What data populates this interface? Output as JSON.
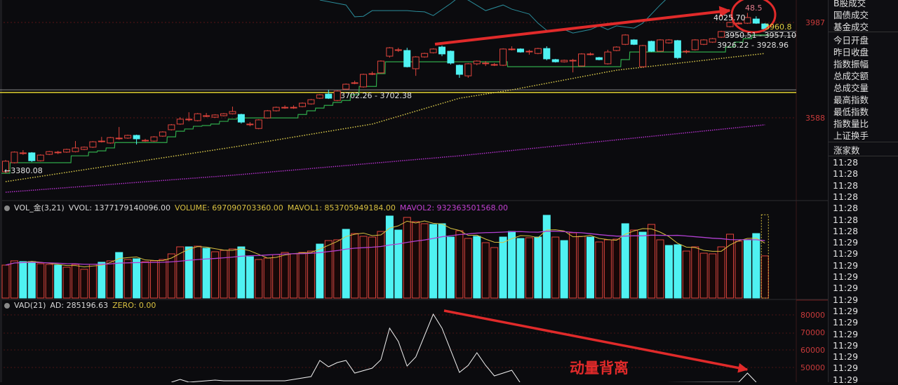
{
  "colors": {
    "up": "#e0443c",
    "down": "#4ff2f2",
    "ma_green": "#2fa84a",
    "ma_yellow": "#d8c84a",
    "ma_purple": "#b030c8",
    "upper_line": "#2a8c9a",
    "annotation": "#e02a2a",
    "axis": "#c83a3a"
  },
  "price_axis": {
    "labels": [
      "3987",
      "3588"
    ]
  },
  "vad_axis": {
    "labels": [
      "80000",
      "70000",
      "60000",
      "50000"
    ]
  },
  "price_labels": {
    "low": "3380.08",
    "mid": "3702.26 - 3702.38",
    "high": "4025.70",
    "circle_value": "48.5",
    "right1": "3950.51 - 3957.10",
    "right2": "3926.22 - 3928.96",
    "right3": "3960.8"
  },
  "vol_header": {
    "name": "VOL_金(3,21)",
    "vvol": "VVOL: 1377179140096.00",
    "volume": "VOLUME: 697090703360.00",
    "mavol1": "MAVOL1: 853705949184.00",
    "mavol2": "MAVOL2: 932363501568.00"
  },
  "vad_header": {
    "name": "VAD(21)",
    "ad": "AD: 285196.63",
    "zero": "ZERO: 0.00"
  },
  "annotation_text": "动量背离",
  "sidebar": {
    "top_items": [
      "B股成交",
      "国债成交",
      "基金成交"
    ],
    "items": [
      "今日开盘",
      "昨日收盘",
      "指数振幅",
      "总成交额",
      "总成交量",
      "最高指数",
      "最低指数",
      "指数量比",
      "上证换手"
    ],
    "last_item": "涨家数",
    "times": [
      "11:28",
      "11:28",
      "11:28",
      "11:28",
      "11:28",
      "11:28",
      "11:28",
      "11:29",
      "11:29",
      "11:29",
      "11:29",
      "11:29",
      "11:29",
      "11:29",
      "11:29",
      "11:29",
      "11:29",
      "11:29",
      "11:29",
      "11:29"
    ]
  },
  "chart_data": {
    "type": "candlestick",
    "price_range": [
      3290,
      4090
    ],
    "reference_lines": [
      3702.3,
      3713
    ],
    "candles": [
      [
        3380,
        3428,
        3374,
        3423
      ],
      [
        3417,
        3463,
        3414,
        3460
      ],
      [
        3457,
        3468,
        3449,
        3457
      ],
      [
        3457,
        3460,
        3420,
        3425
      ],
      [
        3425,
        3451,
        3422,
        3448
      ],
      [
        3451,
        3465,
        3448,
        3462
      ],
      [
        3460,
        3465,
        3452,
        3460
      ],
      [
        3460,
        3474,
        3457,
        3471
      ],
      [
        3462,
        3505,
        3459,
        3477
      ],
      [
        3471,
        3483,
        3468,
        3480
      ],
      [
        3480,
        3505,
        3477,
        3502
      ],
      [
        3505,
        3522,
        3499,
        3505
      ],
      [
        3497,
        3522,
        3494,
        3519
      ],
      [
        3517,
        3562,
        3510,
        3517
      ],
      [
        3517,
        3531,
        3514,
        3528
      ],
      [
        3528,
        3531,
        3491,
        3514
      ],
      [
        3508,
        3514,
        3502,
        3508
      ],
      [
        3505,
        3525,
        3502,
        3522
      ],
      [
        3525,
        3545,
        3522,
        3542
      ],
      [
        3551,
        3574,
        3548,
        3571
      ],
      [
        3574,
        3602,
        3571,
        3594
      ],
      [
        3594,
        3622,
        3585,
        3594
      ],
      [
        3588,
        3619,
        3585,
        3616
      ],
      [
        3608,
        3619,
        3602,
        3608
      ],
      [
        3602,
        3614,
        3599,
        3611
      ],
      [
        3608,
        3619,
        3605,
        3616
      ],
      [
        3616,
        3645,
        3613,
        3625
      ],
      [
        3613,
        3616,
        3576,
        3582
      ],
      [
        3574,
        3582,
        3565,
        3574
      ],
      [
        3556,
        3594,
        3553,
        3591
      ],
      [
        3599,
        3631,
        3596,
        3628
      ],
      [
        3628,
        3645,
        3625,
        3642
      ],
      [
        3642,
        3650,
        3636,
        3642
      ],
      [
        3642,
        3650,
        3636,
        3642
      ],
      [
        3645,
        3662,
        3642,
        3659
      ],
      [
        3656,
        3676,
        3653,
        3673
      ],
      [
        3679,
        3696,
        3676,
        3693
      ],
      [
        3696,
        3713,
        3676,
        3679
      ],
      [
        3670,
        3711,
        3667,
        3708
      ],
      [
        3716,
        3739,
        3713,
        3736
      ],
      [
        3742,
        3750,
        3736,
        3742
      ],
      [
        3725,
        3779,
        3722,
        3776
      ],
      [
        3779,
        3787,
        3773,
        3779
      ],
      [
        3782,
        3833,
        3779,
        3830
      ],
      [
        3850,
        3887,
        3844,
        3884
      ],
      [
        3876,
        3884,
        3867,
        3876
      ],
      [
        3873,
        3884,
        3804,
        3807
      ],
      [
        3799,
        3850,
        3770,
        3847
      ],
      [
        3847,
        3864,
        3844,
        3861
      ],
      [
        3864,
        3882,
        3861,
        3879
      ],
      [
        3887,
        3893,
        3850,
        3859
      ],
      [
        3870,
        3873,
        3816,
        3822
      ],
      [
        3813,
        3816,
        3762,
        3776
      ],
      [
        3770,
        3822,
        3762,
        3819
      ],
      [
        3819,
        3833,
        3813,
        3830
      ],
      [
        3822,
        3830,
        3810,
        3822
      ],
      [
        3816,
        3822,
        3810,
        3816
      ],
      [
        3813,
        3882,
        3810,
        3879
      ],
      [
        3879,
        3890,
        3873,
        3879
      ],
      [
        3879,
        3882,
        3864,
        3867
      ],
      [
        3870,
        3876,
        3856,
        3870
      ],
      [
        3861,
        3884,
        3858,
        3881
      ],
      [
        3881,
        3890,
        3833,
        3839
      ],
      [
        3836,
        3839,
        3824,
        3827
      ],
      [
        3827,
        3836,
        3824,
        3833
      ],
      [
        3833,
        3839,
        3784,
        3833
      ],
      [
        3810,
        3862,
        3807,
        3859
      ],
      [
        3859,
        3865,
        3853,
        3859
      ],
      [
        3844,
        3847,
        3833,
        3836
      ],
      [
        3819,
        3876,
        3816,
        3867
      ],
      [
        3873,
        3890,
        3870,
        3887
      ],
      [
        3898,
        3939,
        3895,
        3936
      ],
      [
        3916,
        3919,
        3895,
        3898
      ],
      [
        3807,
        3896,
        3804,
        3893
      ],
      [
        3910,
        3913,
        3867,
        3870
      ],
      [
        3870,
        3919,
        3867,
        3916
      ],
      [
        3904,
        3919,
        3901,
        3916
      ],
      [
        3913,
        3916,
        3838,
        3844
      ],
      [
        3870,
        3876,
        3861,
        3870
      ],
      [
        3876,
        3919,
        3873,
        3916
      ],
      [
        3898,
        3919,
        3895,
        3916
      ],
      [
        3907,
        3924,
        3904,
        3921
      ],
      [
        3927,
        3953,
        3924,
        3950
      ],
      [
        3970,
        3990,
        3967,
        3987
      ],
      [
        3984,
        3990,
        3978,
        3984
      ],
      [
        3984,
        4025.7,
        3981,
        4007
      ],
      [
        4001,
        4012,
        3981,
        3984
      ],
      [
        3981,
        3984,
        3955,
        3961
      ]
    ],
    "stop_line": [
      3374,
      3417,
      3417,
      3417,
      3417,
      3417,
      3417,
      3417,
      3445,
      3445,
      3460,
      3465,
      3477,
      3499,
      3499,
      3499,
      3499,
      3499,
      3499,
      3522,
      3545,
      3554,
      3565,
      3568,
      3574,
      3585,
      3594,
      3599,
      3599,
      3599,
      3599,
      3599,
      3599,
      3599,
      3613,
      3628,
      3639,
      3650,
      3662,
      3670,
      3693,
      3727,
      3727,
      3779,
      3827,
      3827,
      3827,
      3827,
      3827,
      3827,
      3827,
      3827,
      3827,
      3827,
      3827,
      3827,
      3827,
      3827,
      3807,
      3807,
      3807,
      3807,
      3807,
      3807,
      3807,
      3807,
      3807,
      3807,
      3807,
      3807,
      3807,
      3836,
      3867,
      3867,
      3867,
      3867,
      3867,
      3867,
      3867,
      3867,
      3867,
      3867,
      3867,
      3887,
      3907,
      3921,
      3936,
      3936
    ],
    "ma_yellow": [
      [
        0,
        3340
      ],
      [
        26,
        3480
      ],
      [
        42,
        3574
      ],
      [
        52,
        3679
      ],
      [
        58,
        3713
      ],
      [
        70,
        3793
      ],
      [
        87,
        3861
      ]
    ],
    "ma_purple": [
      [
        0,
        3297
      ],
      [
        26,
        3366
      ],
      [
        52,
        3445
      ],
      [
        87,
        3571
      ]
    ],
    "upper_line": [
      [
        36,
        4078
      ],
      [
        39,
        4058
      ],
      [
        40,
        4010
      ],
      [
        41,
        4012
      ],
      [
        42,
        4035
      ],
      [
        46,
        4035
      ],
      [
        47,
        4032
      ],
      [
        48,
        4030
      ],
      [
        49,
        4015
      ],
      [
        51,
        4064
      ],
      [
        52,
        4092
      ],
      [
        53,
        4078
      ],
      [
        55,
        4035
      ],
      [
        57,
        4058
      ],
      [
        58,
        4041
      ],
      [
        60,
        4021
      ],
      [
        61,
        3984
      ],
      [
        62,
        3955
      ],
      [
        64,
        3958
      ],
      [
        65,
        3944
      ],
      [
        67,
        3958
      ],
      [
        68,
        3973
      ],
      [
        69,
        3958
      ],
      [
        70,
        3973
      ],
      [
        72,
        3964
      ],
      [
        73,
        3984
      ],
      [
        75,
        4058
      ],
      [
        76,
        4092
      ]
    ],
    "volume": [
      545000000000.0,
      615000000000.0,
      603000000000.0,
      603000000000.0,
      568000000000.0,
      557000000000.0,
      545000000000.0,
      510000000000.0,
      557000000000.0,
      476000000000.0,
      557000000000.0,
      592000000000.0,
      615000000000.0,
      754000000000.0,
      638000000000.0,
      650000000000.0,
      603000000000.0,
      615000000000.0,
      638000000000.0,
      731000000000.0,
      847000000000.0,
      847000000000.0,
      858000000000.0,
      824000000000.0,
      766000000000.0,
      789000000000.0,
      812000000000.0,
      847000000000.0,
      684000000000.0,
      638000000000.0,
      661000000000.0,
      719000000000.0,
      754000000000.0,
      731000000000.0,
      754000000000.0,
      777000000000.0,
      893000000000.0,
      951000000000.0,
      963000000000.0,
      1137000000000.0,
      1067000000000.0,
      1021000000000.0,
      1009000000000.0,
      1102000000000.0,
      1357000000000.0,
      1125000000000.0,
      1334000000000.0,
      1264000000000.0,
      1230000000000.0,
      1218000000000.0,
      1230000000000.0,
      1009000000000.0,
      1114000000000.0,
      986000000000.0,
      1021000000000.0,
      916000000000.0,
      835000000000.0,
      1009000000000.0,
      1102000000000.0,
      986000000000.0,
      998000000000.0,
      1009000000000.0,
      1369000000000.0,
      1009000000000.0,
      951000000000.0,
      1079000000000.0,
      1021000000000.0,
      1009000000000.0,
      928000000000.0,
      963000000000.0,
      974000000000.0,
      1230000000000.0,
      1125000000000.0,
      1090000000000.0,
      1218000000000.0,
      963000000000.0,
      870000000000.0,
      882000000000.0,
      777000000000.0,
      847000000000.0,
      742000000000.0,
      731000000000.0,
      847000000000.0,
      1056000000000.0,
      940000000000.0,
      963000000000.0,
      1067000000000.0,
      697090703360.0
    ],
    "volume_colors": "rrccrrcrrrrcrcrcrrrrrcrcrrrccrrrrrrrcrrcrrrrccrrrcccrrcrrcccrccrcrrcrrrcrcrrccrrrrrrrcc",
    "vvol_last": 1377179140096.0,
    "vad": [
      [
        19,
        41600
      ],
      [
        20,
        43200
      ],
      [
        21,
        41600
      ],
      [
        24,
        42800
      ],
      [
        25,
        42400
      ],
      [
        32,
        42400
      ],
      [
        35,
        44800
      ],
      [
        36,
        54000
      ],
      [
        37,
        50400
      ],
      [
        38,
        52800
      ],
      [
        39,
        54000
      ],
      [
        40,
        46800
      ],
      [
        42,
        49600
      ],
      [
        43,
        54400
      ],
      [
        44,
        72400
      ],
      [
        45,
        64800
      ],
      [
        46,
        50800
      ],
      [
        47,
        56000
      ],
      [
        49,
        80400
      ],
      [
        50,
        72400
      ],
      [
        52,
        47200
      ],
      [
        53,
        51200
      ],
      [
        54,
        58400
      ],
      [
        55,
        51200
      ],
      [
        56,
        45200
      ],
      [
        58,
        48400
      ],
      [
        59,
        41000
      ],
      [
        84,
        41600
      ],
      [
        85,
        46800
      ],
      [
        86,
        41600
      ]
    ],
    "vad_range": [
      41000,
      86000
    ]
  }
}
